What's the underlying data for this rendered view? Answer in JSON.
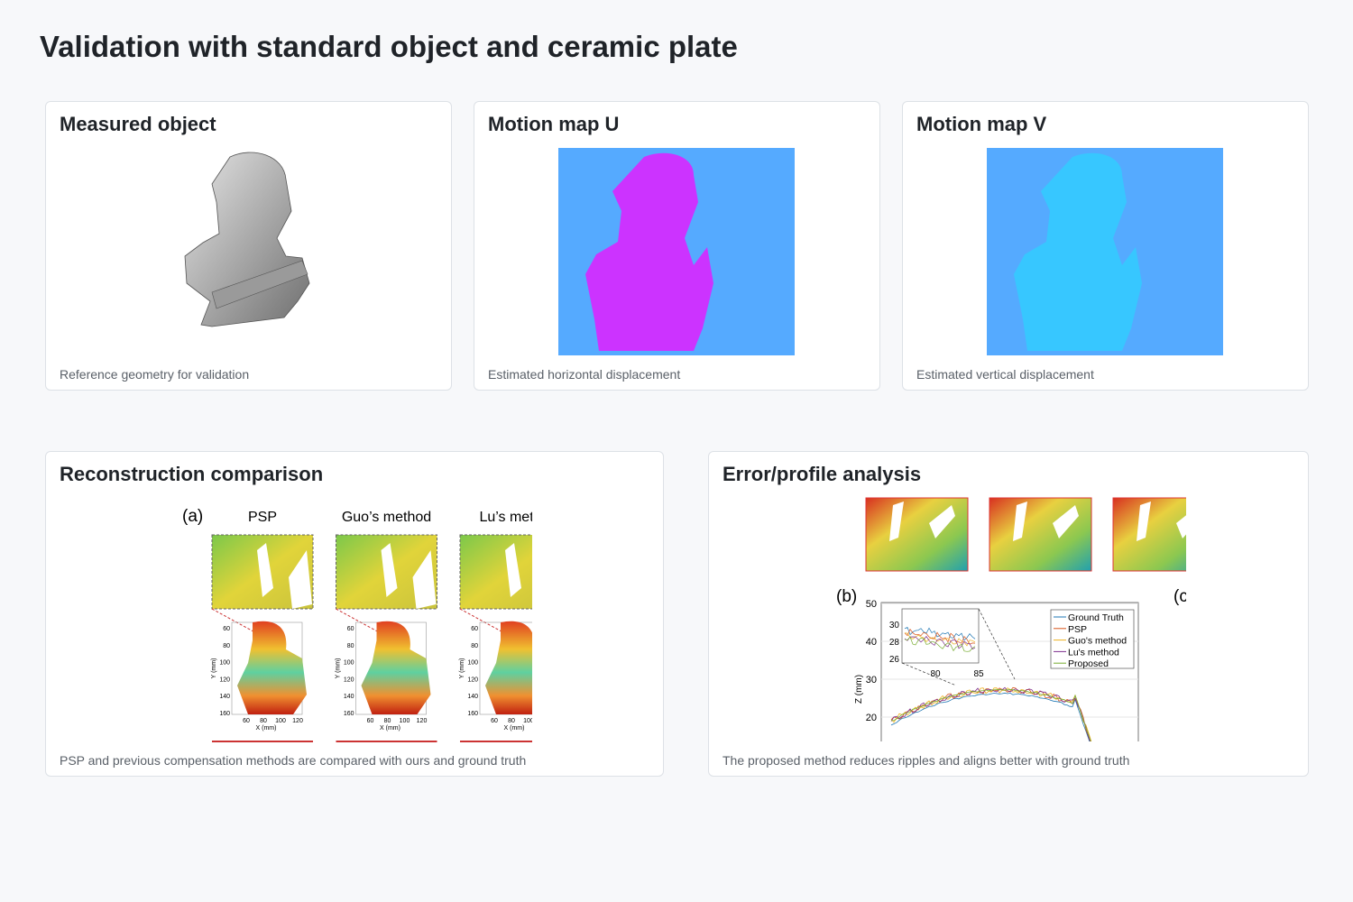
{
  "header": {
    "title": "Validation with standard object and ceramic plate"
  },
  "cards": [
    {
      "title": "Measured object",
      "caption": "Reference geometry for validation"
    },
    {
      "title": "Motion map U",
      "caption": "Estimated horizontal displacement"
    },
    {
      "title": "Motion map V",
      "caption": "Estimated vertical displacement"
    },
    {
      "title": "Reconstruction comparison",
      "caption": "PSP and previous compensation methods are compared with ours and ground truth",
      "figure": {
        "panel": "(a)",
        "columns": [
          "PSP",
          "Guo’s method",
          "Lu’s meth"
        ],
        "y_axis": "Y (mm)",
        "x_axis": "X (mm)",
        "yticks": [
          60,
          80,
          100,
          120,
          140,
          160
        ],
        "xticks": [
          60,
          80,
          100,
          120
        ]
      }
    },
    {
      "title": "Error/profile analysis",
      "caption": "The proposed method reduces ripples and aligns better with ground truth",
      "figure": {
        "panels": [
          "(b)",
          "(c"
        ],
        "y_axis": "Z (mm)",
        "yticks": [
          20,
          30,
          40,
          50
        ],
        "inset_yticks": [
          26,
          28,
          30
        ],
        "inset_xticks": [
          80,
          85
        ],
        "legend": [
          "Ground Truth",
          "PSP",
          "Guo's method",
          "Lu's method",
          "Proposed"
        ]
      }
    }
  ]
}
